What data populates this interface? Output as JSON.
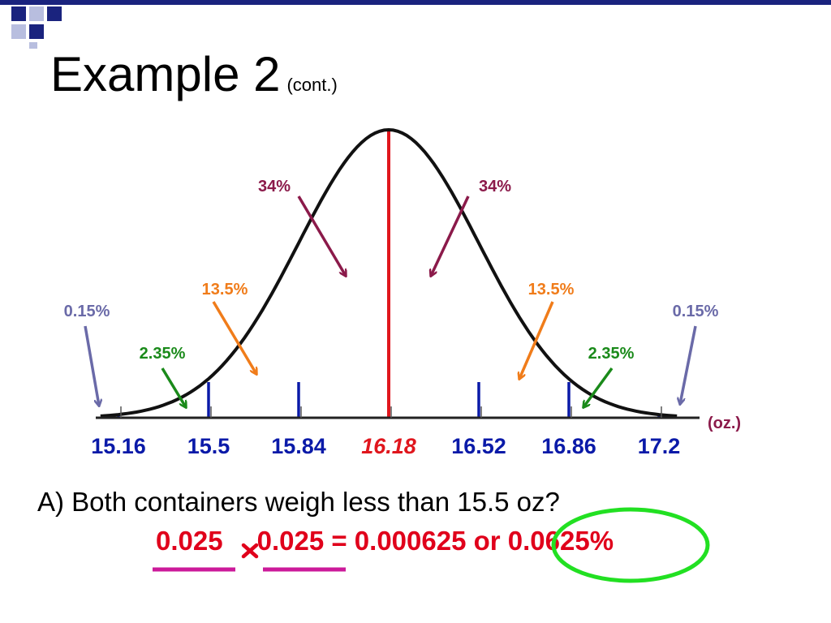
{
  "title": {
    "main": "Example 2",
    "sub": "(cont.)"
  },
  "colors": {
    "curve": "#111111",
    "mean_line": "#e0161d",
    "sd_lines": "#0a1aa8",
    "axis_label_blue": "#0a1aa8",
    "mean_label": "#e0161d",
    "pct34": "#8b1a4a",
    "pct13_5": "#f07c1a",
    "pct2_35": "#1a8a1a",
    "pct0_15": "#6a6aa8",
    "underline": "#cc1a9a",
    "circle": "#22e022",
    "header_navy": "#1a237e"
  },
  "distribution": {
    "mean": 16.18,
    "sd": 0.34,
    "ticks": [
      {
        "label": "15.16",
        "z": -3
      },
      {
        "label": "15.5",
        "z": -2
      },
      {
        "label": "15.84",
        "z": -1
      },
      {
        "label": "16.18",
        "z": 0
      },
      {
        "label": "16.52",
        "z": 1
      },
      {
        "label": "16.86",
        "z": 2
      },
      {
        "label": "17.2",
        "z": 3
      }
    ],
    "unit": "(oz.)",
    "percent_labels": [
      {
        "text": "34%",
        "side": "left",
        "band": "34"
      },
      {
        "text": "34%",
        "side": "right",
        "band": "34"
      },
      {
        "text": "13.5%",
        "side": "left",
        "band": "13.5"
      },
      {
        "text": "13.5%",
        "side": "right",
        "band": "13.5"
      },
      {
        "text": "2.35%",
        "side": "left",
        "band": "2.35"
      },
      {
        "text": "2.35%",
        "side": "right",
        "band": "2.35"
      },
      {
        "text": "0.15%",
        "side": "left",
        "band": "0.15"
      },
      {
        "text": "0.15%",
        "side": "right",
        "band": "0.15"
      }
    ]
  },
  "question": "A) Both containers weigh less than 15.5 oz?",
  "calculation": {
    "factor_a": "0.025",
    "factor_b": "0.025",
    "result": "= 0.000625 or",
    "percent": "0.0625%",
    "operator_icon": "multiply-icon"
  }
}
